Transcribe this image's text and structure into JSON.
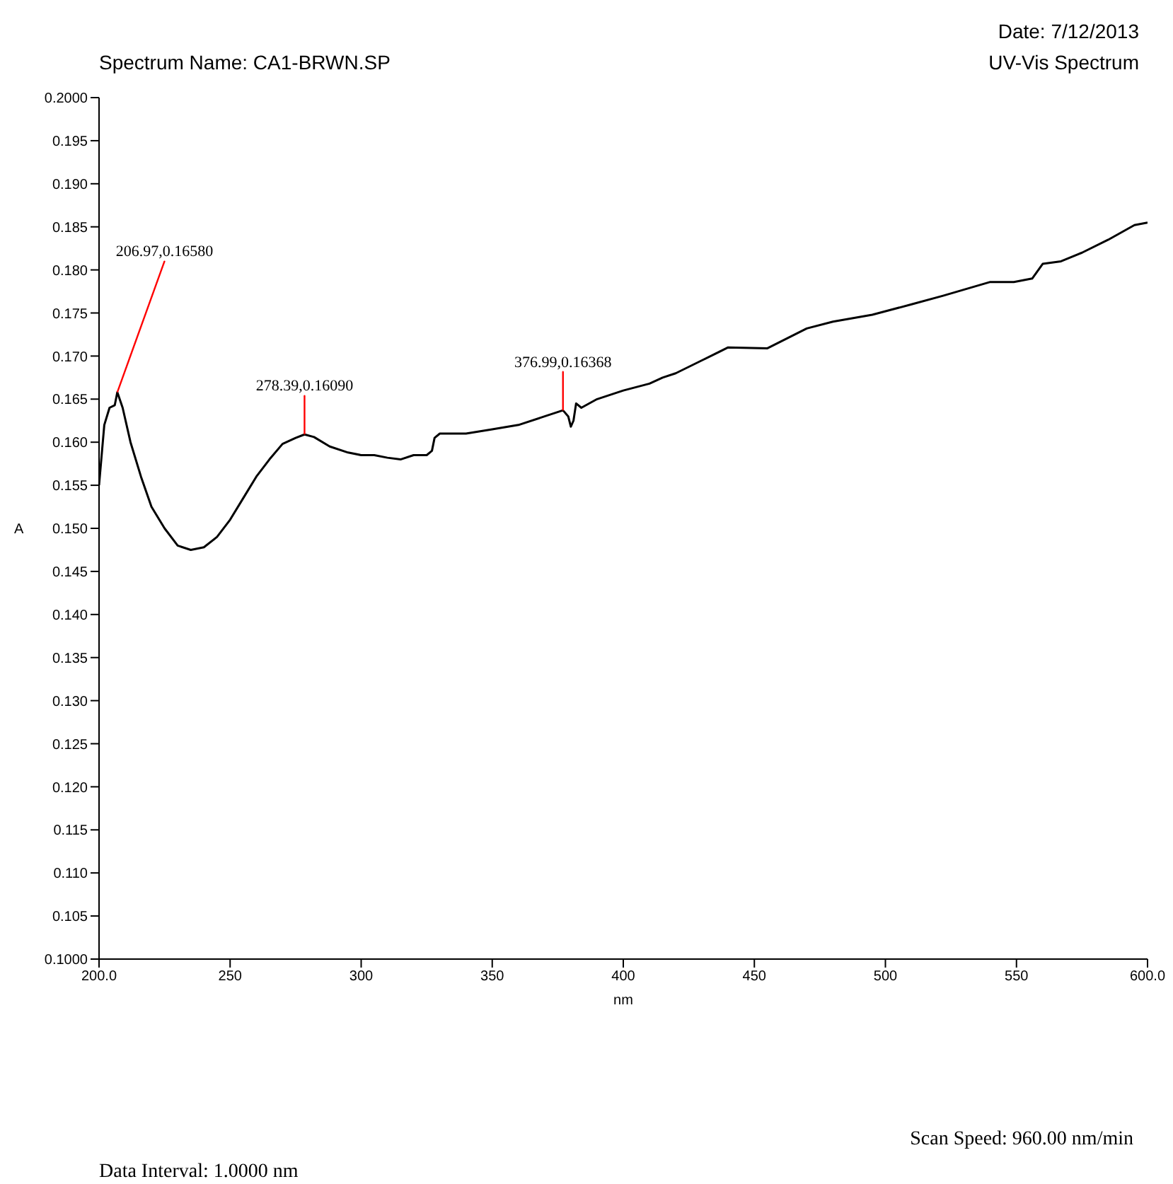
{
  "chart_data": {
    "type": "line",
    "title": "Spectrum Name: CA1-BRWN.SP",
    "xlabel": "nm",
    "ylabel": "A",
    "annotations": [
      "Date: 7/12/2013",
      "UV-Vis Spectrum",
      "Scan Speed: 960.00 nm/min",
      "Data Interval: 1.0000 nm",
      {
        "text": "206.97,0.16580",
        "x": 206.97,
        "y": 0.1658
      },
      {
        "text": "278.39,0.16090",
        "x": 278.39,
        "y": 0.1609
      },
      {
        "text": "376.99,0.16368",
        "x": 376.99,
        "y": 0.16368
      }
    ],
    "series": [
      {
        "color": "#000000",
        "x": [
          200,
          202,
          204,
          206,
          206.97,
          209,
          212,
          216,
          220,
          225,
          230,
          235,
          240,
          245,
          250,
          255,
          260,
          265,
          270,
          275,
          278.39,
          282,
          288,
          295,
          300,
          305,
          310,
          315,
          320,
          325,
          327,
          328,
          330,
          340,
          350,
          360,
          370,
          376.99,
          379,
          380,
          381,
          382,
          384,
          390,
          400,
          410,
          415,
          420,
          430,
          440,
          455,
          470,
          480,
          495,
          510,
          522,
          540,
          549,
          556,
          560,
          567,
          575,
          585,
          595,
          600
        ],
        "values": [
          0.155,
          0.162,
          0.164,
          0.1643,
          0.1658,
          0.164,
          0.16,
          0.156,
          0.1525,
          0.15,
          0.148,
          0.1475,
          0.1478,
          0.149,
          0.151,
          0.1535,
          0.156,
          0.158,
          0.1598,
          0.1605,
          0.1609,
          0.1606,
          0.1595,
          0.1588,
          0.1585,
          0.1585,
          0.1582,
          0.158,
          0.1585,
          0.1585,
          0.159,
          0.1605,
          0.161,
          0.161,
          0.1615,
          0.162,
          0.163,
          0.1637,
          0.163,
          0.1618,
          0.1625,
          0.1645,
          0.164,
          0.165,
          0.166,
          0.1668,
          0.1675,
          0.168,
          0.1695,
          0.171,
          0.1709,
          0.1732,
          0.174,
          0.1748,
          0.176,
          0.177,
          0.1786,
          0.1786,
          0.179,
          0.1807,
          0.181,
          0.182,
          0.1835,
          0.1852,
          0.1855
        ]
      }
    ],
    "xlim": [
      200,
      600
    ],
    "xticks": [
      {
        "value": 200,
        "label": "200.0"
      },
      250,
      300,
      350,
      400,
      450,
      500,
      550,
      {
        "value": 600,
        "label": "600.0"
      }
    ],
    "ylim": [
      0.1,
      0.2
    ],
    "yticks": [
      {
        "value": 0.1,
        "label": "0.1000"
      },
      0.105,
      {
        "value": 0.11,
        "label": "0.110"
      },
      0.115,
      {
        "value": 0.12,
        "label": "0.120"
      },
      0.125,
      {
        "value": 0.13,
        "label": "0.130"
      },
      0.135,
      {
        "value": 0.14,
        "label": "0.140"
      },
      0.145,
      {
        "value": 0.15,
        "label": "0.150"
      },
      0.155,
      {
        "value": 0.16,
        "label": "0.160"
      },
      0.165,
      {
        "value": 0.17,
        "label": "0.170"
      },
      0.175,
      {
        "value": 0.18,
        "label": "0.180"
      },
      0.185,
      {
        "value": 0.19,
        "label": "0.190"
      },
      0.195,
      {
        "value": 0.2,
        "label": "0.2000"
      }
    ],
    "grid": false,
    "marker": "none",
    "line_style": "solid",
    "legend": false
  }
}
